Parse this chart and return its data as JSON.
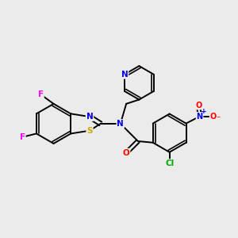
{
  "background_color": "#ebebeb",
  "bond_color": "#000000",
  "atom_colors": {
    "F": "#ff00ff",
    "N": "#0000ee",
    "S": "#ccaa00",
    "O": "#ff0000",
    "Cl": "#00aa00",
    "C": "#000000"
  },
  "figsize": [
    3.0,
    3.0
  ],
  "dpi": 100
}
